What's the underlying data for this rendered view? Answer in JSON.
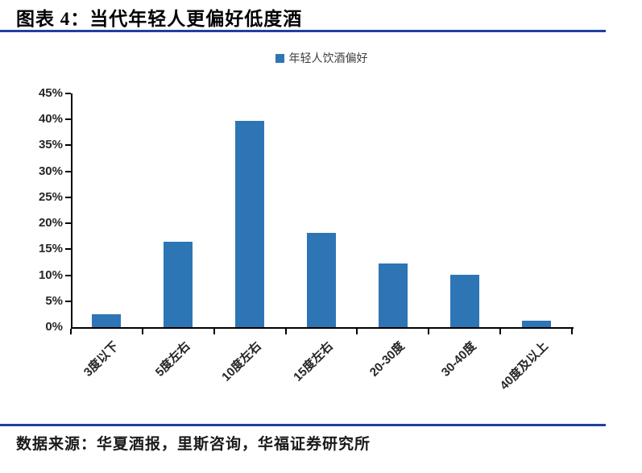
{
  "title": "图表 4：当代年轻人更偏好低度酒",
  "legend": {
    "label": "年轻人饮酒偏好"
  },
  "source": "数据来源：华夏酒报，里斯咨询，华福证券研究所",
  "colors": {
    "bar": "#2E75B6",
    "accent_line": "#2040A0",
    "axis": "#000000",
    "tick_label": "#262626"
  },
  "chart_data": {
    "type": "bar",
    "title": "图表 4：当代年轻人更偏好低度酒",
    "series_name": "年轻人饮酒偏好",
    "categories": [
      "3度以下",
      "5度左右",
      "10度左右",
      "15度左右",
      "20-30度",
      "30-40度",
      "40度及以上"
    ],
    "values": [
      2.5,
      16.4,
      39.7,
      18.1,
      12.3,
      10.1,
      1.2
    ],
    "xlabel": "",
    "ylabel": "",
    "ylim": [
      0,
      45
    ],
    "ytick_step": 5,
    "ytick_format": "percent",
    "grid": false,
    "legend_position": "top",
    "bar_color": "#2E75B6"
  }
}
